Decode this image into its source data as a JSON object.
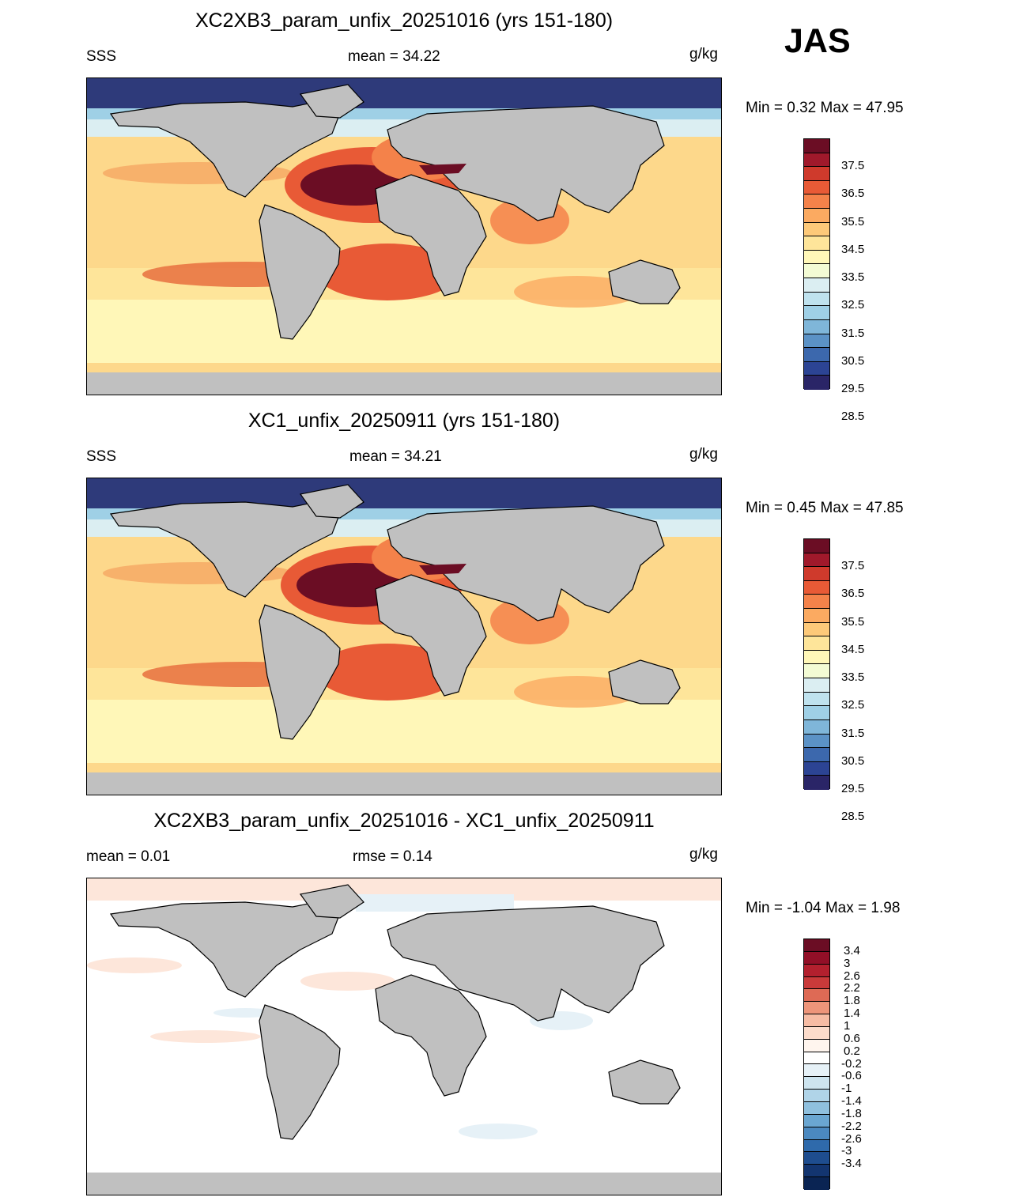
{
  "season": "JAS",
  "panels": [
    {
      "id": "p1",
      "title": "XC2XB3_param_unfix_20251016 (yrs 151-180)",
      "left_label": "SSS",
      "center_label": "mean =  34.22",
      "units": "g/kg",
      "minmax": "Min =   0.32 Max =  47.95",
      "kind": "abs"
    },
    {
      "id": "p2",
      "title": "XC1_unfix_20250911 (yrs 151-180)",
      "left_label": "SSS",
      "center_label": "mean =  34.21",
      "units": "g/kg",
      "minmax": "Min =   0.45 Max =  47.85",
      "kind": "abs"
    },
    {
      "id": "p3",
      "title": "XC2XB3_param_unfix_20251016 - XC1_unfix_20250911",
      "left_label": "mean =   0.01",
      "center_label": "rmse =   0.14",
      "units": "g/kg",
      "minmax": "Min =  -1.04 Max =   1.98",
      "kind": "diff"
    }
  ],
  "colorbars": {
    "abs": {
      "colors": [
        "#6b0d24",
        "#a0192b",
        "#cf3a2c",
        "#e85a36",
        "#f4824a",
        "#fbaa61",
        "#fdc979",
        "#fee59a",
        "#fff7b8",
        "#f3fbd4",
        "#dbeef2",
        "#bfe2ee",
        "#9fd0e6",
        "#7fb6d9",
        "#5b92c6",
        "#3c68ad",
        "#2c4494",
        "#2a2567"
      ],
      "labels": [
        "37.5",
        "36.5",
        "35.5",
        "34.5",
        "33.5",
        "32.5",
        "31.5",
        "30.5",
        "29.5",
        "28.5"
      ]
    },
    "diff": {
      "colors": [
        "#6b0d24",
        "#920f27",
        "#b3202e",
        "#c93a3a",
        "#de6a55",
        "#ee957a",
        "#f7bca4",
        "#fcdccb",
        "#fff5ee",
        "#ffffff",
        "#e6f1f7",
        "#cde4ef",
        "#b0d4e8",
        "#8fc0de",
        "#6aa6d1",
        "#4b89c0",
        "#2f6aab",
        "#1e4d8f",
        "#133570",
        "#0a2453"
      ],
      "labels": [
        "3.4",
        "3",
        "2.6",
        "2.2",
        "1.8",
        "1.4",
        "1",
        "0.6",
        "0.2",
        "-0.2",
        "-0.6",
        "-1",
        "-1.4",
        "-1.8",
        "-2.2",
        "-2.6",
        "-3",
        "-3.4"
      ]
    }
  }
}
